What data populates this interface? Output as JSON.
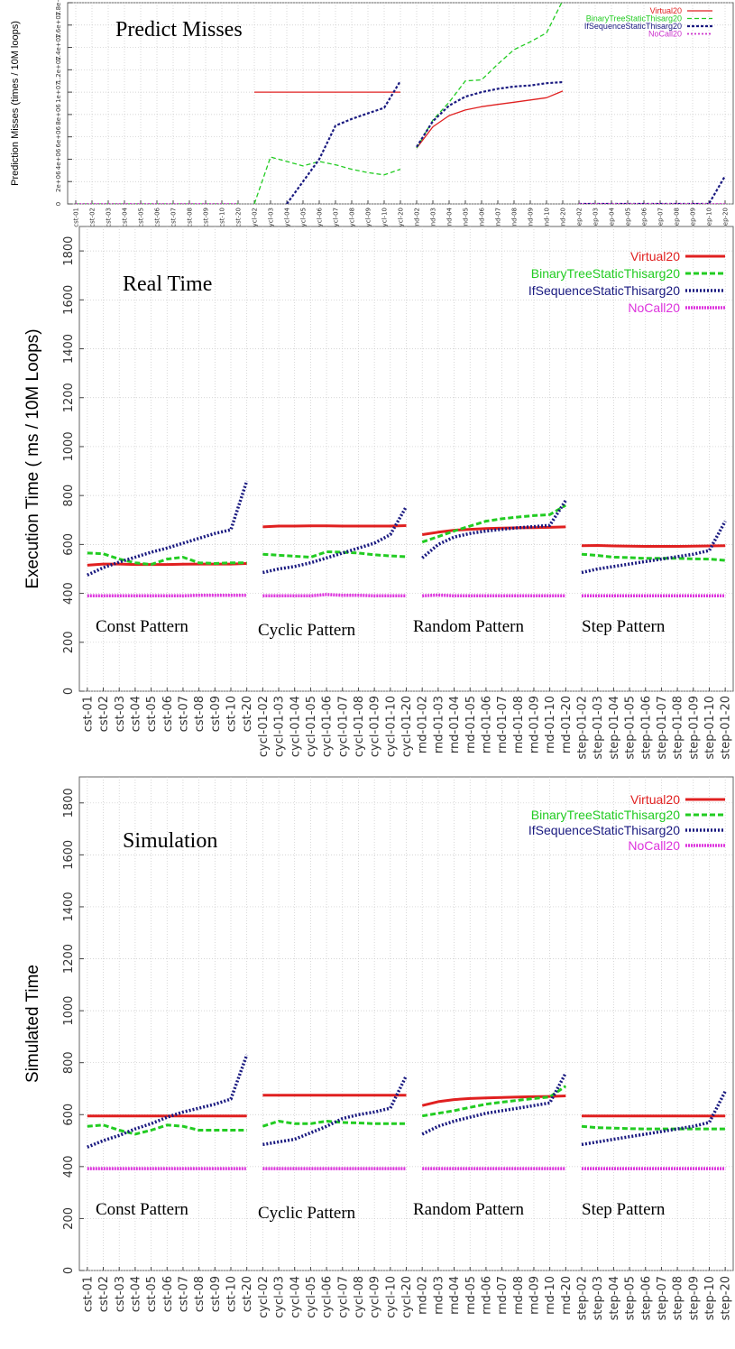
{
  "chart_data": [
    {
      "type": "line",
      "title": "Predict Misses",
      "ylabel": "Prediction Misses (times / 10M loops)",
      "ylim": [
        0,
        18000000
      ],
      "ytick_values": [
        0,
        2000000,
        4000000,
        6000000,
        8000000,
        10000000,
        12000000,
        14000000,
        16000000,
        18000000
      ],
      "ytick_labels": [
        "0",
        "2e+06",
        "4e+06",
        "6e+06",
        "8e+06",
        "1e+07",
        "1.2e+07",
        "1.4e+07",
        "1.6e+07",
        "1.8e+07"
      ],
      "grid": true,
      "legend_position": "top-right",
      "groups": [
        {
          "categories": [
            "cst-01",
            "cst-02",
            "cst-03",
            "cst-04",
            "cst-05",
            "cst-06",
            "cst-07",
            "cst-08",
            "cst-09",
            "cst-10",
            "cst-20"
          ]
        },
        {
          "categories": [
            "cycl-02",
            "cycl-03",
            "cycl-04",
            "cycl-05",
            "cycl-06",
            "cycl-07",
            "cycl-08",
            "cycl-09",
            "cycl-10",
            "cycl-20"
          ]
        },
        {
          "categories": [
            "rnd-02",
            "rnd-03",
            "rnd-04",
            "rnd-05",
            "rnd-06",
            "rnd-07",
            "rnd-08",
            "rnd-09",
            "rnd-10",
            "rnd-20"
          ]
        },
        {
          "categories": [
            "step-02",
            "step-03",
            "step-04",
            "step-05",
            "step-06",
            "step-07",
            "step-08",
            "step-09",
            "step-10",
            "step-20"
          ]
        }
      ],
      "series": [
        {
          "name": "Virtual20",
          "color": "#e02020",
          "dash": "solid",
          "width": 1.3,
          "values": [
            null,
            null,
            null,
            null,
            null,
            null,
            null,
            null,
            null,
            null,
            null,
            10000000,
            10000000,
            10000000,
            10000000,
            10000000,
            10000000,
            10000000,
            10000000,
            10000000,
            10000000,
            5000000,
            6900000,
            7900000,
            8400000,
            8700000,
            8900000,
            9100000,
            9300000,
            9500000,
            10100000,
            null,
            null,
            null,
            null,
            null,
            null,
            null,
            null,
            null,
            null
          ]
        },
        {
          "name": "BinaryTreeStaticThisarg20",
          "color": "#22cc22",
          "dash": "5 3",
          "width": 1.3,
          "values": [
            0,
            0,
            0,
            0,
            0,
            0,
            0,
            0,
            0,
            0,
            0,
            0,
            4200000,
            3800000,
            3400000,
            3800000,
            3500000,
            3100000,
            2800000,
            2600000,
            3100000,
            5000000,
            7500000,
            9100000,
            11000000,
            11100000,
            12500000,
            13800000,
            14500000,
            15300000,
            18200000,
            null,
            null,
            null,
            null,
            null,
            null,
            null,
            null,
            null,
            null
          ]
        },
        {
          "name": "IfSequenceStaticThisarg20",
          "color": "#1a1a80",
          "dash": "3 2",
          "width": 2.2,
          "values": [
            null,
            null,
            null,
            null,
            null,
            null,
            null,
            null,
            null,
            null,
            null,
            null,
            null,
            0,
            2000000,
            4000000,
            7000000,
            7600000,
            8100000,
            8600000,
            11000000,
            5100000,
            7400000,
            8800000,
            9600000,
            10000000,
            10300000,
            10500000,
            10600000,
            10800000,
            10900000,
            0,
            0,
            0,
            0,
            0,
            0,
            0,
            0,
            0,
            2500000
          ]
        },
        {
          "name": "NoCall20",
          "color": "#cc33cc",
          "dash": "2 2",
          "width": 1.8,
          "values": [
            0,
            0,
            0,
            0,
            0,
            0,
            0,
            0,
            0,
            0,
            0,
            null,
            null,
            null,
            null,
            null,
            null,
            null,
            null,
            null,
            null,
            null,
            null,
            null,
            null,
            null,
            null,
            null,
            null,
            null,
            null,
            0,
            0,
            0,
            0,
            0,
            0,
            0,
            0,
            0,
            0
          ]
        }
      ]
    },
    {
      "type": "line",
      "title": "Real Time",
      "ylabel": "Execution Time ( ms / 10M Loops)",
      "ylim": [
        0,
        1900
      ],
      "ytick_values": [
        0,
        200,
        400,
        600,
        800,
        1000,
        1200,
        1400,
        1600,
        1800
      ],
      "ytick_labels": [
        "0",
        "200",
        "400",
        "600",
        "800",
        "1000",
        "1200",
        "1400",
        "1600",
        "1800"
      ],
      "grid": true,
      "legend_position": "top-right",
      "group_labels": [
        "Const Pattern",
        "Cyclic Pattern",
        "Random Pattern",
        "Step Pattern"
      ],
      "groups": [
        {
          "categories": [
            "cst-01",
            "cst-02",
            "cst-03",
            "cst-04",
            "cst-05",
            "cst-06",
            "cst-07",
            "cst-08",
            "cst-09",
            "cst-10",
            "cst-20"
          ]
        },
        {
          "categories": [
            "cycl-01-02",
            "cycl-01-03",
            "cycl-01-04",
            "cycl-01-05",
            "cycl-01-06",
            "cycl-01-07",
            "cycl-01-08",
            "cycl-01-09",
            "cycl-01-10",
            "cycl-01-20"
          ]
        },
        {
          "categories": [
            "rnd-01-02",
            "rnd-01-03",
            "rnd-01-04",
            "rnd-01-05",
            "rnd-01-06",
            "rnd-01-07",
            "rnd-01-08",
            "rnd-01-09",
            "rnd-01-10",
            "rnd-01-20"
          ]
        },
        {
          "categories": [
            "step-01-02",
            "step-01-03",
            "step-01-04",
            "step-01-05",
            "step-01-06",
            "step-01-07",
            "step-01-08",
            "step-01-09",
            "step-01-10",
            "step-01-20"
          ]
        }
      ],
      "series": [
        {
          "name": "Virtual20",
          "color": "#e02020",
          "dash": "solid",
          "width": 3,
          "values": [
            515,
            520,
            520,
            518,
            518,
            518,
            519,
            520,
            520,
            520,
            522,
            672,
            675,
            675,
            676,
            676,
            675,
            675,
            675,
            675,
            677,
            640,
            650,
            658,
            662,
            665,
            667,
            668,
            669,
            670,
            672,
            595,
            596,
            594,
            593,
            592,
            592,
            592,
            593,
            594,
            595
          ]
        },
        {
          "name": "BinaryTreeStaticThisarg20",
          "color": "#22cc22",
          "dash": "6 3",
          "width": 3,
          "values": [
            565,
            562,
            540,
            525,
            518,
            540,
            548,
            525,
            522,
            525,
            525,
            560,
            556,
            552,
            548,
            570,
            568,
            565,
            558,
            553,
            550,
            610,
            632,
            655,
            675,
            695,
            705,
            712,
            718,
            722,
            760,
            560,
            555,
            548,
            546,
            543,
            543,
            543,
            541,
            540,
            535
          ]
        },
        {
          "name": "IfSequenceStaticThisarg20",
          "color": "#1a1a80",
          "dash": "2 2",
          "width": 3.5,
          "values": [
            475,
            505,
            528,
            548,
            568,
            585,
            605,
            625,
            645,
            660,
            860,
            485,
            500,
            510,
            525,
            545,
            565,
            585,
            605,
            640,
            755,
            545,
            600,
            630,
            645,
            655,
            662,
            668,
            673,
            678,
            780,
            485,
            500,
            510,
            520,
            530,
            540,
            550,
            560,
            575,
            695
          ]
        },
        {
          "name": "NoCall20",
          "color": "#dd33dd",
          "dash": "2 1",
          "width": 3.5,
          "values": [
            390,
            390,
            390,
            390,
            390,
            390,
            390,
            392,
            392,
            392,
            392,
            390,
            390,
            390,
            390,
            395,
            392,
            392,
            390,
            390,
            390,
            390,
            393,
            390,
            390,
            390,
            390,
            390,
            390,
            390,
            390,
            390,
            390,
            390,
            390,
            390,
            390,
            390,
            390,
            390,
            390
          ]
        }
      ]
    },
    {
      "type": "line",
      "title": "Simulation",
      "ylabel": "Simulated Time",
      "ylim": [
        0,
        1900
      ],
      "ytick_values": [
        0,
        200,
        400,
        600,
        800,
        1000,
        1200,
        1400,
        1600,
        1800
      ],
      "ytick_labels": [
        "0",
        "200",
        "400",
        "600",
        "800",
        "1000",
        "1200",
        "1400",
        "1600",
        "1800"
      ],
      "grid": true,
      "legend_position": "top-right",
      "group_labels": [
        "Const Pattern",
        "Cyclic Pattern",
        "Random Pattern",
        "Step Pattern"
      ],
      "groups": [
        {
          "categories": [
            "cst-01",
            "cst-02",
            "cst-03",
            "cst-04",
            "cst-05",
            "cst-06",
            "cst-07",
            "cst-08",
            "cst-09",
            "cst-10",
            "cst-20"
          ]
        },
        {
          "categories": [
            "cycl-02",
            "cycl-03",
            "cycl-04",
            "cycl-05",
            "cycl-06",
            "cycl-07",
            "cycl-08",
            "cycl-09",
            "cycl-10",
            "cycl-20"
          ]
        },
        {
          "categories": [
            "rnd-02",
            "rnd-03",
            "rnd-04",
            "rnd-05",
            "rnd-06",
            "rnd-07",
            "rnd-08",
            "rnd-09",
            "rnd-10",
            "rnd-20"
          ]
        },
        {
          "categories": [
            "step-02",
            "step-03",
            "step-04",
            "step-05",
            "step-06",
            "step-07",
            "step-08",
            "step-09",
            "step-10",
            "step-20"
          ]
        }
      ],
      "series": [
        {
          "name": "Virtual20",
          "color": "#e02020",
          "dash": "solid",
          "width": 3,
          "values": [
            595,
            595,
            595,
            595,
            595,
            595,
            595,
            595,
            595,
            595,
            595,
            675,
            675,
            675,
            675,
            675,
            675,
            675,
            675,
            675,
            675,
            635,
            650,
            658,
            662,
            664,
            666,
            668,
            669,
            670,
            672,
            595,
            595,
            595,
            595,
            595,
            595,
            595,
            595,
            595,
            595
          ]
        },
        {
          "name": "BinaryTreeStaticThisarg20",
          "color": "#22cc22",
          "dash": "6 3",
          "width": 3,
          "values": [
            555,
            560,
            540,
            525,
            540,
            560,
            555,
            540,
            540,
            540,
            540,
            555,
            575,
            565,
            565,
            575,
            570,
            568,
            565,
            565,
            565,
            595,
            605,
            615,
            628,
            640,
            648,
            655,
            662,
            668,
            710,
            555,
            550,
            548,
            546,
            545,
            545,
            545,
            545,
            545,
            545
          ]
        },
        {
          "name": "IfSequenceStaticThisarg20",
          "color": "#1a1a80",
          "dash": "2 2",
          "width": 3.5,
          "values": [
            475,
            500,
            520,
            545,
            565,
            590,
            610,
            625,
            640,
            660,
            830,
            485,
            495,
            505,
            530,
            555,
            585,
            600,
            610,
            625,
            750,
            525,
            555,
            575,
            590,
            605,
            615,
            625,
            635,
            645,
            760,
            485,
            495,
            505,
            515,
            525,
            535,
            545,
            555,
            570,
            690
          ]
        },
        {
          "name": "NoCall20",
          "color": "#dd33dd",
          "dash": "2 1",
          "width": 3.5,
          "values": [
            392,
            392,
            392,
            392,
            392,
            392,
            392,
            392,
            392,
            392,
            392,
            392,
            392,
            392,
            392,
            392,
            392,
            392,
            392,
            392,
            392,
            392,
            392,
            392,
            392,
            392,
            392,
            392,
            392,
            392,
            392,
            392,
            392,
            392,
            392,
            392,
            392,
            392,
            392,
            392,
            392
          ]
        }
      ]
    }
  ]
}
